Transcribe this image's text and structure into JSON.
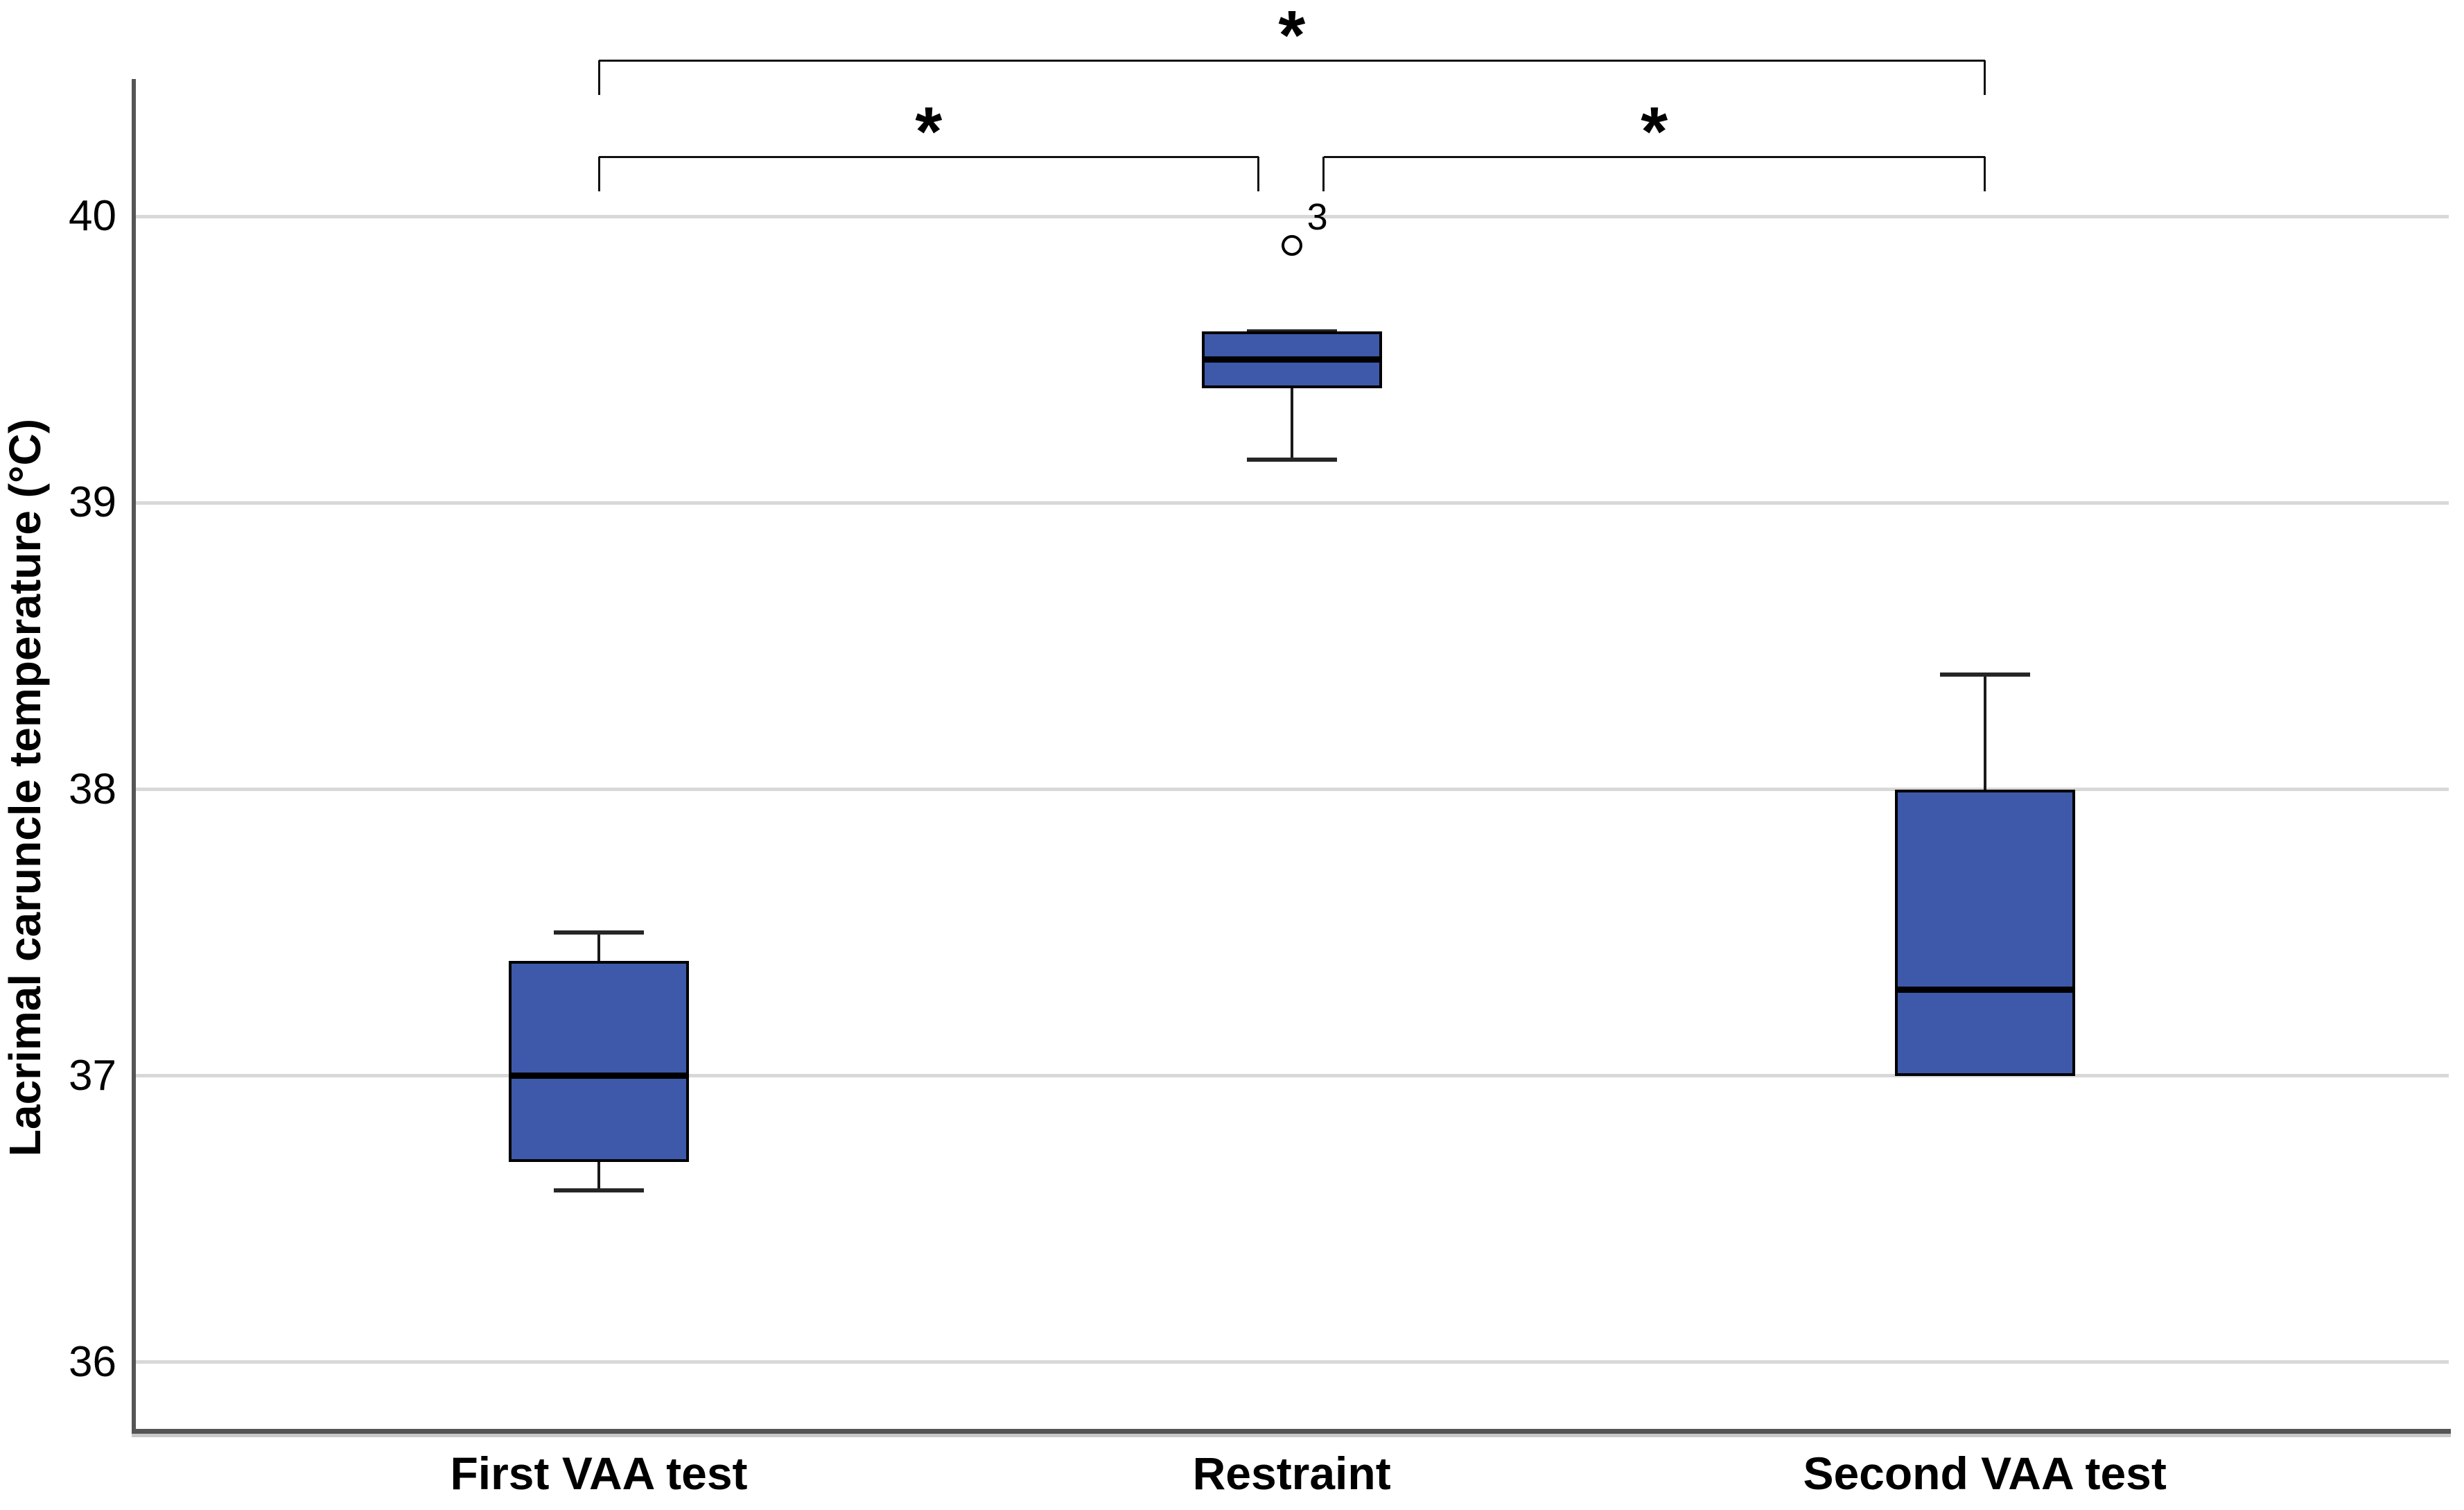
{
  "chart_data": {
    "type": "boxplot",
    "title": "",
    "ylabel": "Lacrimal caruncle temperature (°C)",
    "xlabel": "",
    "categories": [
      "First VAA test",
      "Restraint",
      "Second VAA test"
    ],
    "yticks": [
      36,
      37,
      38,
      39,
      40
    ],
    "ylim": [
      35.76,
      40.48
    ],
    "grid": "horizontal-gridlines",
    "legend": "none",
    "series": [
      {
        "category": "First VAA test",
        "whisker_low": 36.6,
        "q1": 36.7,
        "median": 37.0,
        "q3": 37.4,
        "whisker_high": 37.5,
        "outliers": []
      },
      {
        "category": "Restraint",
        "whisker_low": 39.15,
        "q1": 39.4,
        "median": 39.5,
        "q3": 39.6,
        "whisker_high": 39.6,
        "outliers": [
          {
            "value": 39.9,
            "label": "3"
          }
        ]
      },
      {
        "category": "Second VAA test",
        "whisker_low": 37.0,
        "q1": 37.0,
        "median": 37.3,
        "q3": 38.0,
        "whisker_high": 38.4,
        "outliers": []
      }
    ],
    "significance_brackets": [
      {
        "between": [
          "First VAA test",
          "Second VAA test"
        ],
        "label": "*",
        "row": "top"
      },
      {
        "between": [
          "First VAA test",
          "Restraint"
        ],
        "label": "*",
        "row": "lower"
      },
      {
        "between": [
          "Restraint",
          "Second VAA test"
        ],
        "label": "*",
        "row": "lower"
      }
    ],
    "colors": {
      "box_fill": "#3E59A9",
      "box_border": "#000000",
      "median": "#000000",
      "whisker": "#1A1A1A",
      "cap": "#262626",
      "bracket": "#111111",
      "gridline": "#D8D8D8",
      "axis": "#555555",
      "axis_shadow": "#C9C9C9",
      "text": "#000000",
      "background": "#FFFFFF"
    }
  }
}
